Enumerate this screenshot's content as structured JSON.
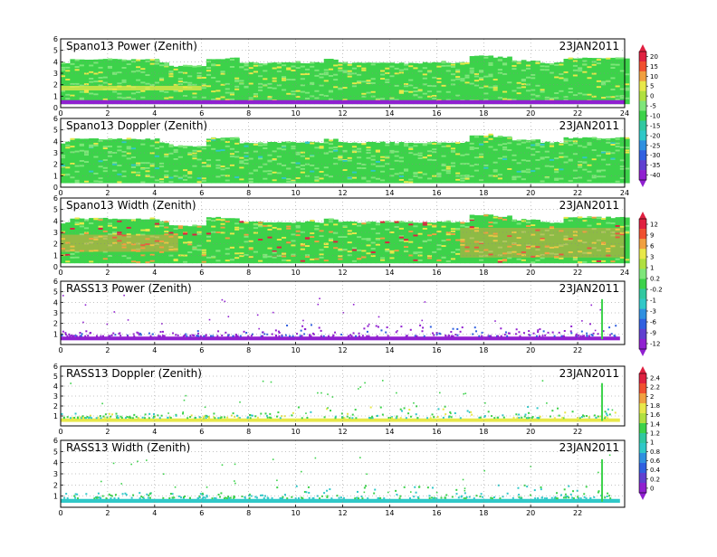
{
  "chart_data": [
    {
      "type": "heatmap",
      "title": "Spano13 Power (Zenith)",
      "date": "23JAN2011",
      "xlim": [
        0,
        24
      ],
      "ylim": [
        0,
        6
      ],
      "xticks": [
        "0",
        "2",
        "4",
        "6",
        "8",
        "10",
        "12",
        "14",
        "16",
        "18",
        "20",
        "22",
        "24"
      ],
      "yticks": [
        "0",
        "1",
        "2",
        "3",
        "4",
        "5",
        "6"
      ],
      "grid": true,
      "colorbar": [
        "20",
        "15",
        "10",
        "5",
        "0",
        "-5",
        "-10",
        "-15",
        "-20",
        "-25",
        "-30",
        "-35",
        "-40"
      ]
    },
    {
      "type": "heatmap",
      "title": "Spano13 Doppler (Zenith)",
      "date": "23JAN2011",
      "xlim": [
        0,
        24
      ],
      "ylim": [
        0,
        6
      ],
      "xticks": [
        "0",
        "2",
        "4",
        "6",
        "8",
        "10",
        "12",
        "14",
        "16",
        "18",
        "20",
        "22",
        "24"
      ],
      "yticks": [
        "0",
        "1",
        "2",
        "3",
        "4",
        "5",
        "6"
      ],
      "grid": true
    },
    {
      "type": "heatmap",
      "title": "Spano13 Width (Zenith)",
      "date": "23JAN2011",
      "xlim": [
        0,
        24
      ],
      "ylim": [
        0,
        6
      ],
      "xticks": [
        "0",
        "2",
        "4",
        "6",
        "8",
        "10",
        "12",
        "14",
        "16",
        "18",
        "20",
        "22",
        "24"
      ],
      "yticks": [
        "0",
        "1",
        "2",
        "3",
        "4",
        "5",
        "6"
      ],
      "grid": true,
      "colorbar": [
        "12",
        "9",
        "6",
        "3",
        "1",
        "0.2",
        "-0.2",
        "-1",
        "-3",
        "-6",
        "-9",
        "-12"
      ]
    },
    {
      "type": "heatmap",
      "title": "RASS13 Power (Zenith)",
      "date": "23JAN2011",
      "xlim": [
        0,
        24
      ],
      "ylim": [
        0,
        6
      ],
      "xticks": [
        "0",
        "2",
        "4",
        "6",
        "8",
        "10",
        "12",
        "14",
        "16",
        "18",
        "20",
        "22"
      ],
      "yticks": [
        "1",
        "2",
        "3",
        "4",
        "5",
        "6"
      ],
      "grid": true
    },
    {
      "type": "heatmap",
      "title": "RASS13 Doppler (Zenith)",
      "date": "23JAN2011",
      "xlim": [
        0,
        24
      ],
      "ylim": [
        0,
        6
      ],
      "xticks": [
        "0",
        "2",
        "4",
        "6",
        "8",
        "10",
        "12",
        "14",
        "16",
        "18",
        "20",
        "22"
      ],
      "yticks": [
        "1",
        "2",
        "3",
        "4",
        "5",
        "6"
      ],
      "grid": true,
      "colorbar": [
        "2.4",
        "2.2",
        "2",
        "1.8",
        "1.6",
        "1.4",
        "1.2",
        "1",
        "0.8",
        "0.6",
        "0.4",
        "0.2",
        "0"
      ]
    },
    {
      "type": "heatmap",
      "title": "RASS13 Width (Zenith)",
      "date": "23JAN2011",
      "xlim": [
        0,
        24
      ],
      "ylim": [
        0,
        6
      ],
      "xticks": [
        "0",
        "2",
        "4",
        "6",
        "8",
        "10",
        "12",
        "14",
        "16",
        "18",
        "20",
        "22"
      ],
      "yticks": [
        "1",
        "2",
        "3",
        "4",
        "5",
        "6"
      ],
      "grid": true
    }
  ],
  "colors": {
    "background_green": "#3cd24a",
    "light_green": "#7ee67a",
    "yellow": "#e8e84a",
    "orange": "#f0a040",
    "red": "#e02040",
    "cyan": "#30c8c8",
    "blue": "#3060e0",
    "purple": "#9020d0"
  }
}
